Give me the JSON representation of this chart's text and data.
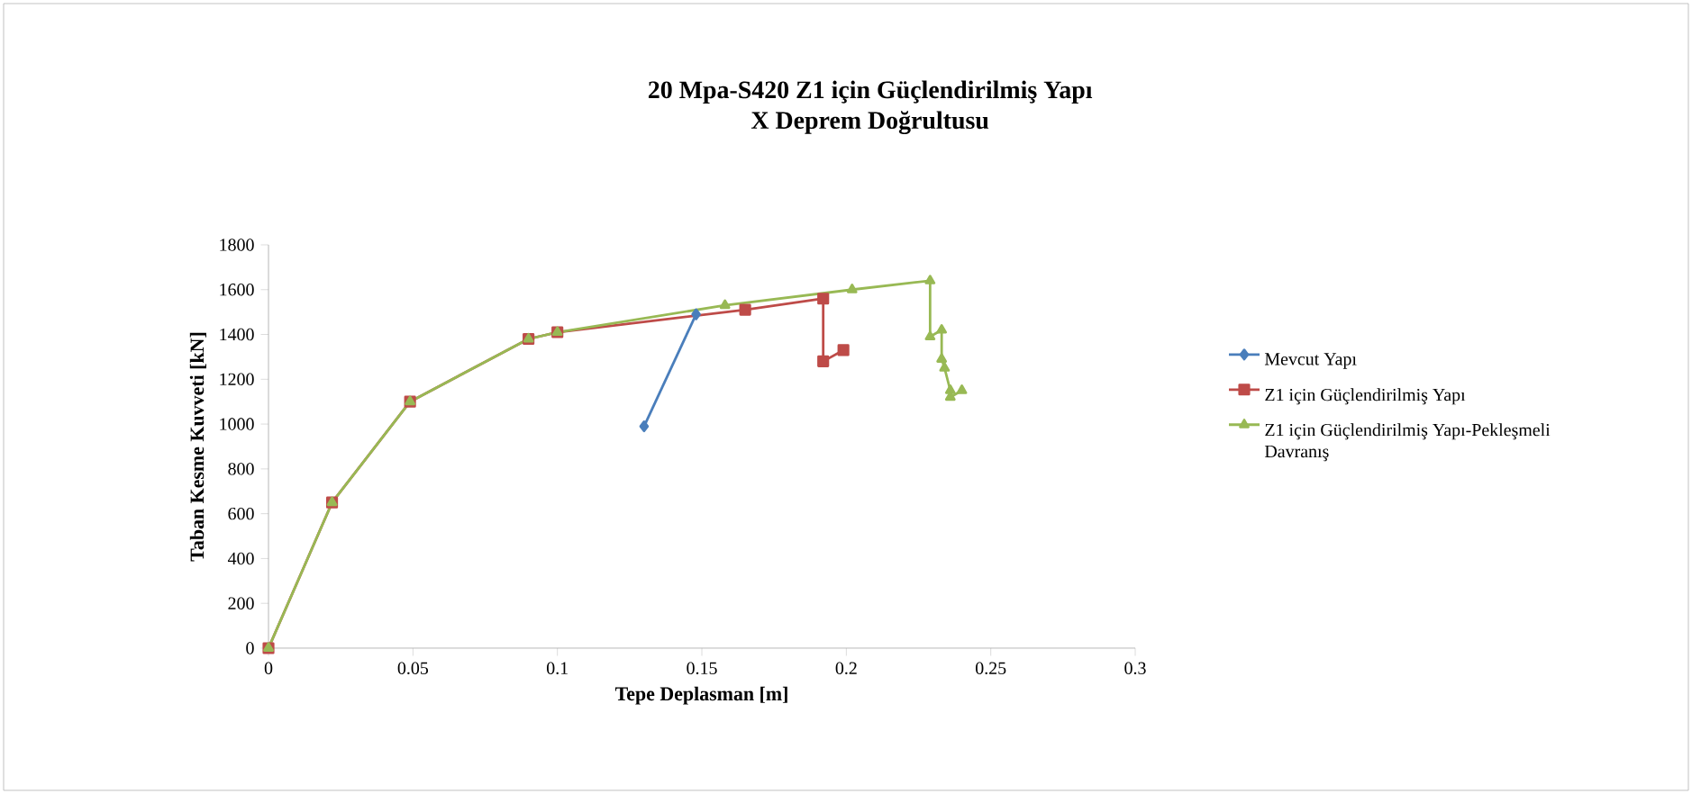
{
  "chart_data": {
    "type": "line",
    "title": "20 Mpa-S420 Z1 için Güçlendirilmiş Yapı\nX Deprem Doğrultusu",
    "xlabel": "Tepe Deplasman [m]",
    "ylabel": "Taban Kesme Kuvveti [kN]",
    "xlim": [
      0,
      0.3
    ],
    "xticks": [
      0,
      0.05,
      0.1,
      0.15,
      0.2,
      0.25,
      0.3
    ],
    "ylim": [
      0,
      1800
    ],
    "yticks": [
      0,
      200,
      400,
      600,
      800,
      1000,
      1200,
      1400,
      1600,
      1800
    ],
    "grid": false,
    "legend": "right",
    "line_style": "solid",
    "series": [
      {
        "name": "Mevcut Yapı",
        "color": "#4a7ebb",
        "marker": "diamond",
        "x": [
          0.148,
          0.13
        ],
        "values": [
          1490,
          990
        ]
      },
      {
        "name": "Z1 için Güçlendirilmiş Yapı",
        "color": "#be4b48",
        "marker": "square",
        "x": [
          0,
          0.022,
          0.049,
          0.09,
          0.1,
          0.165,
          0.192,
          0.192,
          0.199
        ],
        "values": [
          0,
          650,
          1100,
          1380,
          1410,
          1510,
          1560,
          1280,
          1330
        ]
      },
      {
        "name": "Z1 için Güçlendirilmiş Yapı-Pekleşmeli Davranış",
        "color": "#98b954",
        "marker": "triangle",
        "x": [
          0,
          0.022,
          0.049,
          0.09,
          0.1,
          0.158,
          0.202,
          0.229,
          0.229,
          0.233,
          0.233,
          0.234,
          0.236,
          0.236,
          0.24
        ],
        "values": [
          0,
          650,
          1100,
          1380,
          1410,
          1530,
          1600,
          1640,
          1390,
          1420,
          1290,
          1250,
          1150,
          1120,
          1150
        ]
      }
    ]
  }
}
